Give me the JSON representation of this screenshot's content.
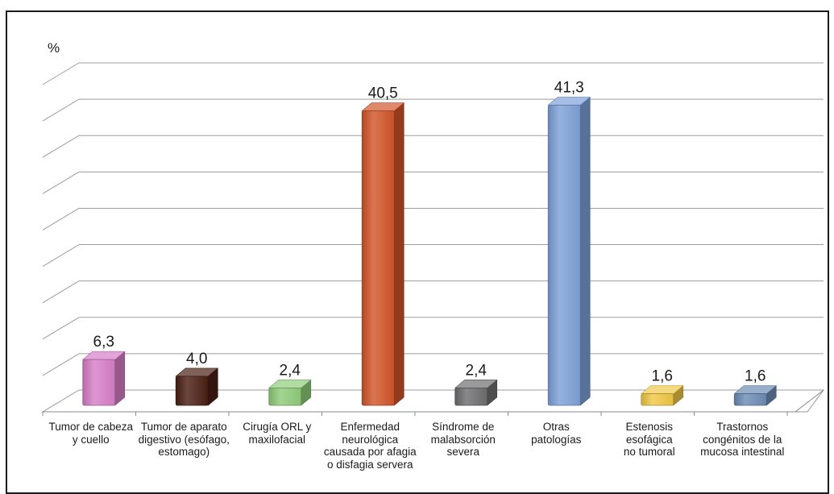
{
  "chart_data": {
    "type": "bar",
    "ylabel": "%",
    "ylim": [
      0,
      45
    ],
    "grid": true,
    "categories": [
      "Tumor de cabeza\ny cuello",
      "Tumor de aparato\ndigestivo (esófago,\nestomago)",
      "Cirugía ORL y\nmaxilofacial",
      "Enfermedad\nneurológica\ncausada por afagia\no disfagia servera",
      "Síndrome de\nmalabsorción\nsevera",
      "Otras\npatologías",
      "Estenosis\nesofágica\nno tumoral",
      "Trastornos\ncongénitos de la\nmucosa intestinal"
    ],
    "values": [
      6.3,
      4.0,
      2.4,
      40.5,
      2.4,
      41.3,
      1.6,
      1.6
    ],
    "value_labels": [
      "6,3",
      "4,0",
      "2,4",
      "40,5",
      "2,4",
      "41,3",
      "1,6",
      "1,6"
    ],
    "bar_colors": [
      "#d77fc8",
      "#4a1f14",
      "#8fcc7a",
      "#d2552a",
      "#6e6e70",
      "#7ea1d8",
      "#f0c846",
      "#6c8cb4"
    ]
  }
}
